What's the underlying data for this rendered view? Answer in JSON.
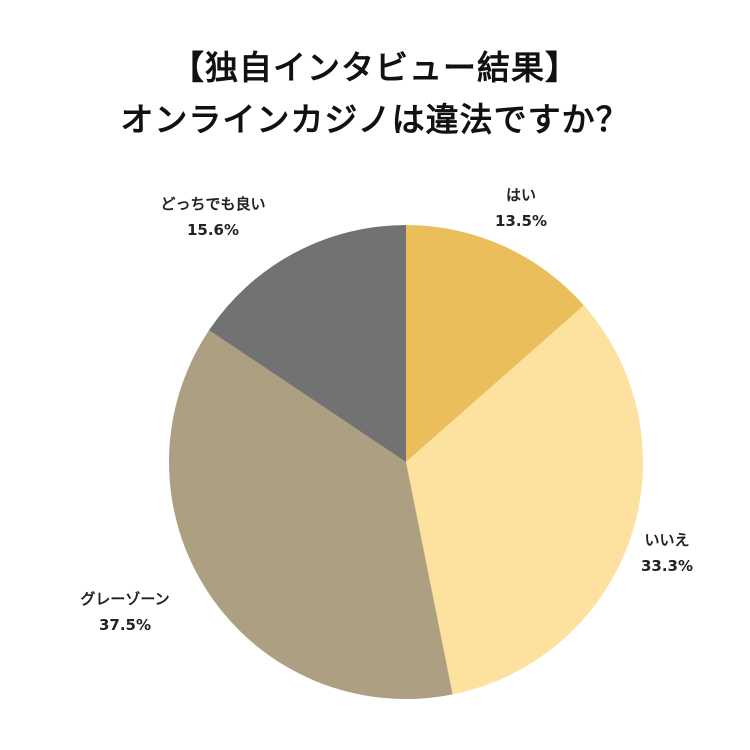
{
  "title_lines": [
    "【独自インタビュー結果】",
    "オンラインカジノは違法ですか？"
  ],
  "chart_data": {
    "type": "pie",
    "title": "【独自インタビュー結果】オンラインカジノは違法ですか？",
    "start_angle_deg": 0,
    "direction": "clockwise",
    "slices": [
      {
        "label": "はい",
        "value": 13.5,
        "value_label": "13.5%",
        "color": "#EABF5B"
      },
      {
        "label": "いいえ",
        "value": 33.3,
        "value_label": "33.3%",
        "color": "#FDE19F"
      },
      {
        "label": "グレーゾーン",
        "value": 37.5,
        "value_label": "37.5%",
        "color": "#AD9F81"
      },
      {
        "label": "どっちでも良い",
        "value": 15.6,
        "value_label": "15.6%",
        "color": "#727272"
      }
    ]
  }
}
